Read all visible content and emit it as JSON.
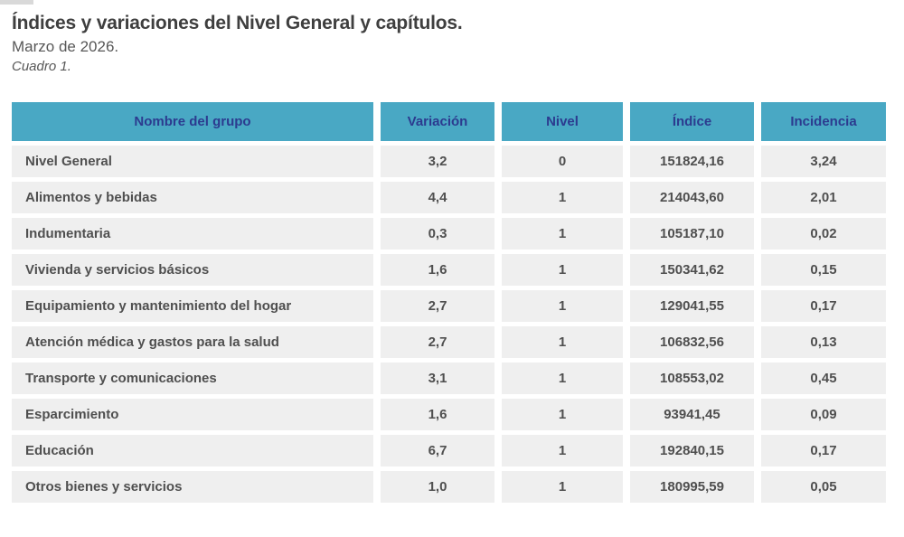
{
  "header": {
    "title": "Índices y variaciones del Nivel General y capítulos.",
    "subtitle": "Marzo de 2026.",
    "caption": "Cuadro 1."
  },
  "colors": {
    "table_header_bg": "#49a8c4",
    "table_header_text": "#2c3b8f",
    "row_bg": "#efefef",
    "row_text": "#4f4f4f",
    "title_text": "#3f3f3f"
  },
  "chart_data": {
    "type": "table",
    "title": "Índices y variaciones del Nivel General y capítulos.",
    "subtitle": "Marzo de 2026.",
    "caption": "Cuadro 1.",
    "columns": [
      "Nombre del grupo",
      "Variación",
      "Nivel",
      "Índice",
      "Incidencia"
    ],
    "rows": [
      [
        "Nivel General",
        "3,2",
        "0",
        "151824,16",
        "3,24"
      ],
      [
        "Alimentos y bebidas",
        "4,4",
        "1",
        "214043,60",
        "2,01"
      ],
      [
        "Indumentaria",
        "0,3",
        "1",
        "105187,10",
        "0,02"
      ],
      [
        "Vivienda y servicios básicos",
        "1,6",
        "1",
        "150341,62",
        "0,15"
      ],
      [
        "Equipamiento y mantenimiento del hogar",
        "2,7",
        "1",
        "129041,55",
        "0,17"
      ],
      [
        "Atención médica y gastos para la salud",
        "2,7",
        "1",
        "106832,56",
        "0,13"
      ],
      [
        "Transporte y comunicaciones",
        "3,1",
        "1",
        "108553,02",
        "0,45"
      ],
      [
        "Esparcimiento",
        "1,6",
        "1",
        "93941,45",
        "0,09"
      ],
      [
        "Educación",
        "6,7",
        "1",
        "192840,15",
        "0,17"
      ],
      [
        "Otros bienes y servicios",
        "1,0",
        "1",
        "180995,59",
        "0,05"
      ]
    ]
  }
}
